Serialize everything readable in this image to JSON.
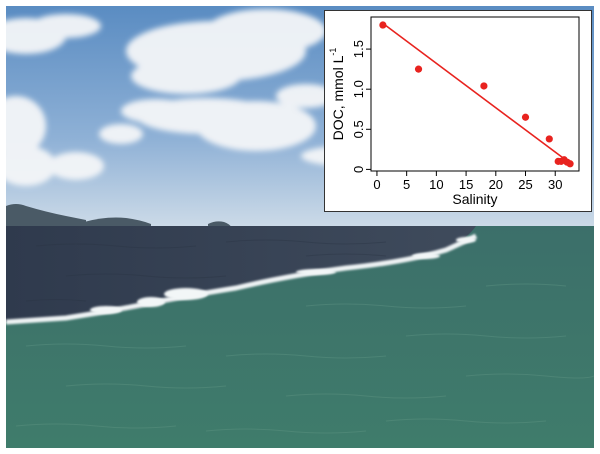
{
  "scene": {
    "description_icons": [
      "cloud-icon",
      "island-icon"
    ],
    "colors": {
      "sky_top": "#5f8fc4",
      "sky_horizon": "#c9d9e9",
      "river_water": "#3d4a5e",
      "sea_water": "#3f7d6e",
      "foam": "#eef3f4"
    }
  },
  "chart_data": {
    "type": "scatter",
    "xlabel": "Salinity",
    "ylabel": "DOC, mmol L",
    "ylabel_superscript": "-1",
    "xlim": [
      -1,
      34
    ],
    "ylim": [
      -0.02,
      1.9
    ],
    "xticks": [
      0,
      5,
      10,
      15,
      20,
      25,
      30
    ],
    "yticks": [
      0,
      0.5,
      1.0,
      1.5
    ],
    "ytick_labels": [
      "0",
      "0.5",
      "1.0",
      "1.5"
    ],
    "grid": false,
    "point_color": "#e8231f",
    "line_color": "#e8231f",
    "x": [
      1,
      7,
      18,
      25,
      29,
      30.5,
      31,
      31.5,
      32,
      32.5
    ],
    "y": [
      1.8,
      1.25,
      1.04,
      0.65,
      0.38,
      0.1,
      0.1,
      0.12,
      0.09,
      0.07
    ],
    "fit_line": {
      "x": [
        1,
        33
      ],
      "y": [
        1.82,
        0.05
      ]
    }
  }
}
